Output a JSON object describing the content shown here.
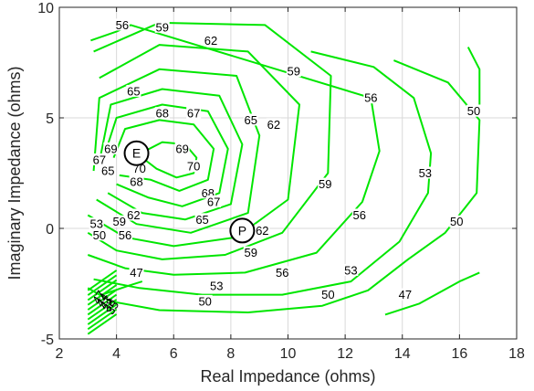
{
  "chart_data": {
    "type": "contour",
    "title": "",
    "xlabel": "Real Impedance (ohms)",
    "ylabel": "Imaginary Impedance (ohms)",
    "xlim": [
      2,
      18
    ],
    "ylim": [
      -5,
      10
    ],
    "xticks": [
      2,
      4,
      6,
      8,
      10,
      12,
      14,
      16,
      18
    ],
    "yticks": [
      -5,
      0,
      5,
      10
    ],
    "xtick_labels": [
      "2",
      "4",
      "6",
      "8",
      "10",
      "12",
      "14",
      "16",
      "18"
    ],
    "ytick_labels": [
      "-5",
      "0",
      "5",
      "10"
    ],
    "grid": true,
    "line_color": "#00e600",
    "contour_levels": [
      70,
      69,
      68,
      67,
      65,
      62,
      59,
      56,
      53,
      50,
      47
    ],
    "contours": [
      {
        "level": 70,
        "points": [
          [
            5.0,
            3.5
          ],
          [
            5.6,
            3.9
          ],
          [
            6.4,
            3.8
          ],
          [
            6.8,
            3.2
          ],
          [
            6.7,
            2.5
          ],
          [
            6.1,
            2.3
          ],
          [
            5.4,
            2.7
          ],
          [
            5.0,
            3.1
          ]
        ]
      },
      {
        "level": 69,
        "points": [
          [
            3.9,
            3.2
          ],
          [
            4.3,
            4.5
          ],
          [
            5.5,
            4.9
          ],
          [
            6.7,
            4.7
          ],
          [
            7.4,
            3.6
          ],
          [
            7.2,
            2.2
          ],
          [
            6.2,
            1.7
          ],
          [
            5.2,
            2.2
          ],
          [
            4.1,
            2.4
          ]
        ]
      },
      {
        "level": 68,
        "points": [
          [
            3.6,
            3.4
          ],
          [
            4.0,
            5.0
          ],
          [
            5.6,
            5.6
          ],
          [
            7.2,
            5.3
          ],
          [
            7.9,
            3.6
          ],
          [
            7.6,
            1.6
          ],
          [
            6.3,
            1.0
          ],
          [
            5.1,
            1.4
          ],
          [
            4.0,
            2.0
          ]
        ]
      },
      {
        "level": 67,
        "points": [
          [
            3.4,
            3.0
          ],
          [
            3.8,
            5.6
          ],
          [
            5.6,
            6.3
          ],
          [
            7.6,
            6.0
          ],
          [
            8.4,
            3.8
          ],
          [
            8.0,
            1.1
          ],
          [
            6.4,
            0.4
          ],
          [
            4.9,
            0.7
          ],
          [
            3.7,
            1.6
          ]
        ]
      },
      {
        "level": 65,
        "points": [
          [
            3.2,
            2.6
          ],
          [
            3.4,
            5.9
          ],
          [
            5.5,
            7.2
          ],
          [
            8.2,
            6.9
          ],
          [
            9.0,
            4.2
          ],
          [
            8.6,
            0.7
          ],
          [
            6.6,
            -0.2
          ],
          [
            4.7,
            0.2
          ],
          [
            3.3,
            1.3
          ]
        ]
      },
      {
        "level": 62,
        "points": [
          [
            3.4,
            6.8
          ],
          [
            5.5,
            8.3
          ],
          [
            8.6,
            8.0
          ],
          [
            10.4,
            5.6
          ],
          [
            10.0,
            1.3
          ],
          [
            8.2,
            -0.4
          ],
          [
            6.0,
            -0.8
          ],
          [
            4.3,
            -0.4
          ],
          [
            3.0,
            0.6
          ]
        ]
      },
      {
        "level": 59,
        "points": [
          [
            3.2,
            8.0
          ],
          [
            5.5,
            9.3
          ],
          [
            9.2,
            9.2
          ],
          [
            11.5,
            6.9
          ],
          [
            11.4,
            2.5
          ],
          [
            9.8,
            -0.2
          ],
          [
            7.8,
            -1.2
          ],
          [
            5.6,
            -1.4
          ],
          [
            4.0,
            -1.0
          ],
          [
            3.0,
            -0.2
          ]
        ]
      },
      {
        "level": 56,
        "points": [
          [
            3.1,
            8.5
          ],
          [
            4.0,
            8.9
          ],
          [
            4.5,
            9.2
          ],
          [
            12.9,
            5.9
          ],
          [
            13.2,
            3.5
          ],
          [
            12.6,
            1.2
          ],
          [
            11.0,
            -1.1
          ],
          [
            8.5,
            -2.0
          ],
          [
            6.0,
            -2.1
          ],
          [
            4.3,
            -1.8
          ],
          [
            3.0,
            -1.2
          ]
        ]
      },
      {
        "level": 53,
        "points": [
          [
            10.8,
            8.0
          ],
          [
            13.0,
            7.3
          ],
          [
            14.4,
            5.9
          ],
          [
            15.0,
            3.4
          ],
          [
            14.9,
            1.6
          ],
          [
            13.9,
            -0.6
          ],
          [
            12.2,
            -2.4
          ],
          [
            9.8,
            -3.0
          ],
          [
            7.0,
            -3.0
          ],
          [
            4.8,
            -2.7
          ],
          [
            3.2,
            -2.3
          ]
        ]
      },
      {
        "level": 50,
        "points": [
          [
            13.7,
            7.6
          ],
          [
            15.6,
            6.6
          ],
          [
            16.7,
            4.9
          ],
          [
            16.6,
            1.6
          ],
          [
            15.5,
            -0.2
          ],
          [
            14.2,
            -1.4
          ],
          [
            12.8,
            -2.8
          ],
          [
            11.2,
            -3.5
          ],
          [
            8.6,
            -3.8
          ],
          [
            5.5,
            -3.7
          ],
          [
            3.8,
            -3.3
          ],
          [
            3.0,
            -2.7
          ]
        ]
      },
      {
        "level": 47,
        "points": [
          [
            16.3,
            8.2
          ],
          [
            16.7,
            7.2
          ],
          [
            16.7,
            5.6
          ]
        ]
      },
      {
        "level": 47,
        "points": [
          [
            3.5,
            -3.0
          ],
          [
            4.4,
            -2.6
          ],
          [
            4.9,
            -2.4
          ]
        ]
      },
      {
        "level": 47,
        "points": [
          [
            13.4,
            -3.9
          ],
          [
            14.6,
            -3.4
          ],
          [
            16.0,
            -2.4
          ],
          [
            16.7,
            -2.0
          ]
        ]
      }
    ],
    "left_edge_levels": [
      "47",
      "44",
      "41",
      "38",
      "35"
    ],
    "labels": [
      {
        "text": "56",
        "x": 4.2,
        "y": 9.2
      },
      {
        "text": "59",
        "x": 5.6,
        "y": 9.1
      },
      {
        "text": "62",
        "x": 7.3,
        "y": 8.5
      },
      {
        "text": "59",
        "x": 10.2,
        "y": 7.1
      },
      {
        "text": "56",
        "x": 12.9,
        "y": 5.9
      },
      {
        "text": "50",
        "x": 16.5,
        "y": 5.3
      },
      {
        "text": "65",
        "x": 4.6,
        "y": 6.2
      },
      {
        "text": "68",
        "x": 5.6,
        "y": 5.2
      },
      {
        "text": "67",
        "x": 6.7,
        "y": 5.2
      },
      {
        "text": "65",
        "x": 8.7,
        "y": 4.9
      },
      {
        "text": "62",
        "x": 9.5,
        "y": 4.7
      },
      {
        "text": "69",
        "x": 3.8,
        "y": 3.6
      },
      {
        "text": "69",
        "x": 6.3,
        "y": 3.6
      },
      {
        "text": "67",
        "x": 3.4,
        "y": 3.1
      },
      {
        "text": "65",
        "x": 3.7,
        "y": 2.6
      },
      {
        "text": "70",
        "x": 4.8,
        "y": 2.7
      },
      {
        "text": "70",
        "x": 6.7,
        "y": 2.8
      },
      {
        "text": "68",
        "x": 4.7,
        "y": 2.1
      },
      {
        "text": "59",
        "x": 11.3,
        "y": 2.0
      },
      {
        "text": "53",
        "x": 14.8,
        "y": 2.5
      },
      {
        "text": "68",
        "x": 7.2,
        "y": 1.6
      },
      {
        "text": "67",
        "x": 7.4,
        "y": 1.2
      },
      {
        "text": "62",
        "x": 4.6,
        "y": 0.6
      },
      {
        "text": "59",
        "x": 4.1,
        "y": 0.3
      },
      {
        "text": "65",
        "x": 7.0,
        "y": 0.4
      },
      {
        "text": "56",
        "x": 12.5,
        "y": 0.6
      },
      {
        "text": "53",
        "x": 3.3,
        "y": 0.2
      },
      {
        "text": "50",
        "x": 3.4,
        "y": -0.3
      },
      {
        "text": "56",
        "x": 4.3,
        "y": -0.3
      },
      {
        "text": "62",
        "x": 9.1,
        "y": -0.1
      },
      {
        "text": "50",
        "x": 15.9,
        "y": 0.3
      },
      {
        "text": "59",
        "x": 8.7,
        "y": -1.1
      },
      {
        "text": "56",
        "x": 9.8,
        "y": -2.0
      },
      {
        "text": "53",
        "x": 12.2,
        "y": -1.9
      },
      {
        "text": "47",
        "x": 4.7,
        "y": -2.0
      },
      {
        "text": "53",
        "x": 7.5,
        "y": -2.6
      },
      {
        "text": "50",
        "x": 11.4,
        "y": -3.0
      },
      {
        "text": "47",
        "x": 14.1,
        "y": -3.0
      },
      {
        "text": "50",
        "x": 7.1,
        "y": -3.3
      }
    ],
    "markers": [
      {
        "label": "E",
        "x": 4.7,
        "y": 3.4
      },
      {
        "label": "P",
        "x": 8.4,
        "y": -0.1
      }
    ]
  }
}
